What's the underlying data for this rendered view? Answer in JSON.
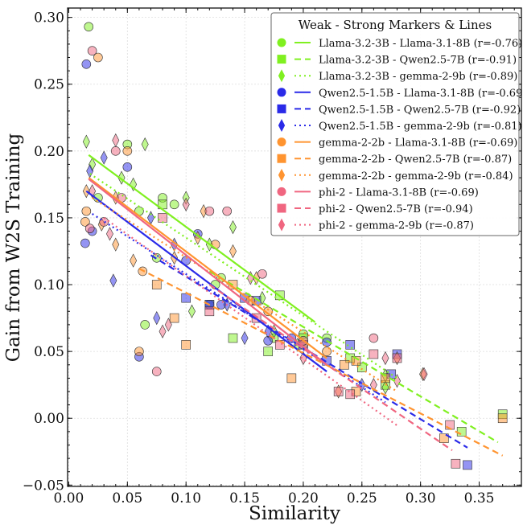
{
  "chart_data": {
    "type": "scatter",
    "title": "",
    "xlabel": "Similarity",
    "ylabel": "Gain from W2S Training",
    "xlim": [
      -0.001,
      0.386
    ],
    "ylim": [
      -0.051,
      0.307
    ],
    "xticks": [
      "0.00",
      "0.05",
      "0.10",
      "0.15",
      "0.20",
      "0.25",
      "0.30",
      "0.35"
    ],
    "yticks": [
      "−0.05",
      "0.00",
      "0.05",
      "0.10",
      "0.15",
      "0.20",
      "0.25",
      "0.30"
    ],
    "grid": true,
    "legend": {
      "title": "Weak - Strong Markers & Lines",
      "placement": "top-right"
    },
    "series": [
      {
        "name": "Llama-3.2-3B - Llama-3.1-8B (r=-0.76)",
        "color": "#80f020",
        "marker": "circle",
        "line": "solid",
        "fit": [
          [
            0.017,
            0.197
          ],
          [
            0.21,
            0.072
          ]
        ],
        "points": [
          [
            0.017,
            0.293
          ],
          [
            0.05,
            0.205
          ],
          [
            0.025,
            0.165
          ],
          [
            0.08,
            0.165
          ],
          [
            0.09,
            0.16
          ],
          [
            0.06,
            0.155
          ],
          [
            0.13,
            0.105
          ],
          [
            0.125,
            0.1
          ],
          [
            0.075,
            0.12
          ],
          [
            0.22,
            0.06
          ],
          [
            0.2,
            0.063
          ],
          [
            0.175,
            0.06
          ],
          [
            0.065,
            0.07
          ]
        ]
      },
      {
        "name": "Llama-3.2-3B - Qwen2.5-7B (r=-0.91)",
        "color": "#80f020",
        "marker": "square",
        "line": "dashed",
        "fit": [
          [
            0.12,
            0.11
          ],
          [
            0.366,
            -0.018
          ]
        ],
        "points": [
          [
            0.18,
            0.092
          ],
          [
            0.12,
            0.085
          ],
          [
            0.14,
            0.06
          ],
          [
            0.17,
            0.05
          ],
          [
            0.24,
            0.045
          ],
          [
            0.25,
            0.038
          ],
          [
            0.27,
            0.025
          ],
          [
            0.37,
            0.003
          ],
          [
            0.335,
            -0.01
          ],
          [
            0.2,
            0.06
          ],
          [
            0.08,
            0.16
          ]
        ]
      },
      {
        "name": "Llama-3.2-3B - gemma-2-9b (r=-0.89)",
        "color": "#80f020",
        "marker": "diamond",
        "line": "dotted",
        "fit": [
          [
            0.018,
            0.183
          ],
          [
            0.28,
            0.03
          ]
        ],
        "points": [
          [
            0.015,
            0.207
          ],
          [
            0.065,
            0.205
          ],
          [
            0.02,
            0.19
          ],
          [
            0.045,
            0.18
          ],
          [
            0.055,
            0.175
          ],
          [
            0.1,
            0.165
          ],
          [
            0.14,
            0.143
          ],
          [
            0.165,
            0.09
          ],
          [
            0.175,
            0.065
          ],
          [
            0.195,
            0.055
          ],
          [
            0.27,
            0.032
          ],
          [
            0.27,
            0.023
          ],
          [
            0.12,
            0.13
          ],
          [
            0.105,
            0.08
          ]
        ]
      },
      {
        "name": "Qwen2.5-1.5B - Llama-3.1-8B (r=-0.69)",
        "color": "#2a2ae8",
        "marker": "circle",
        "line": "solid",
        "fit": [
          [
            0.015,
            0.17
          ],
          [
            0.22,
            0.035
          ]
        ],
        "points": [
          [
            0.015,
            0.265
          ],
          [
            0.05,
            0.188
          ],
          [
            0.02,
            0.14
          ],
          [
            0.014,
            0.131
          ],
          [
            0.06,
            0.046
          ],
          [
            0.11,
            0.138
          ],
          [
            0.1,
            0.118
          ],
          [
            0.19,
            0.06
          ],
          [
            0.22,
            0.057
          ],
          [
            0.17,
            0.058
          ],
          [
            0.12,
            0.085
          ],
          [
            0.13,
            0.085
          ]
        ]
      },
      {
        "name": "Qwen2.5-1.5B - Qwen2.5-7B (r=-0.92)",
        "color": "#2a2ae8",
        "marker": "square",
        "line": "dashed",
        "fit": [
          [
            0.07,
            0.122
          ],
          [
            0.34,
            -0.022
          ]
        ],
        "points": [
          [
            0.1,
            0.09
          ],
          [
            0.15,
            0.09
          ],
          [
            0.12,
            0.085
          ],
          [
            0.2,
            0.055
          ],
          [
            0.24,
            0.055
          ],
          [
            0.28,
            0.048
          ],
          [
            0.34,
            -0.035
          ],
          [
            0.275,
            0.033
          ],
          [
            0.16,
            0.088
          ],
          [
            0.22,
            0.043
          ]
        ]
      },
      {
        "name": "Qwen2.5-1.5B - gemma-2-9b (r=-0.81)",
        "color": "#2a2ae8",
        "marker": "diamond",
        "line": "dotted",
        "fit": [
          [
            0.02,
            0.153
          ],
          [
            0.27,
            0.012
          ]
        ],
        "points": [
          [
            0.03,
            0.195
          ],
          [
            0.018,
            0.185
          ],
          [
            0.07,
            0.15
          ],
          [
            0.038,
            0.103
          ],
          [
            0.075,
            0.075
          ],
          [
            0.09,
            0.13
          ],
          [
            0.135,
            0.085
          ],
          [
            0.17,
            0.065
          ],
          [
            0.15,
            0.06
          ],
          [
            0.25,
            0.025
          ]
        ]
      },
      {
        "name": "gemma-2-2b - Llama-3.1-8B (r=-0.69)",
        "color": "#ff9430",
        "marker": "circle",
        "line": "solid",
        "fit": [
          [
            0.017,
            0.18
          ],
          [
            0.22,
            0.045
          ]
        ],
        "points": [
          [
            0.025,
            0.27
          ],
          [
            0.05,
            0.2
          ],
          [
            0.015,
            0.155
          ],
          [
            0.014,
            0.147
          ],
          [
            0.063,
            0.11
          ],
          [
            0.06,
            0.05
          ],
          [
            0.155,
            0.088
          ],
          [
            0.2,
            0.055
          ],
          [
            0.22,
            0.05
          ],
          [
            0.17,
            0.08
          ],
          [
            0.125,
            0.13
          ]
        ]
      },
      {
        "name": "gemma-2-2b - Qwen2.5-7B (r=-0.87)",
        "color": "#ff9430",
        "marker": "square",
        "line": "dashed",
        "fit": [
          [
            0.06,
            0.112
          ],
          [
            0.37,
            -0.028
          ]
        ],
        "points": [
          [
            0.075,
            0.1
          ],
          [
            0.1,
            0.055
          ],
          [
            0.14,
            0.1
          ],
          [
            0.19,
            0.03
          ],
          [
            0.235,
            0.04
          ],
          [
            0.245,
            0.043
          ],
          [
            0.27,
            0.03
          ],
          [
            0.32,
            -0.015
          ],
          [
            0.37,
            0.0
          ],
          [
            0.245,
            0.02
          ],
          [
            0.09,
            0.075
          ]
        ]
      },
      {
        "name": "gemma-2-2b - gemma-2-9b (r=-0.84)",
        "color": "#ff9430",
        "marker": "diamond",
        "line": "dotted",
        "fit": [
          [
            0.02,
            0.165
          ],
          [
            0.28,
            0.02
          ]
        ],
        "points": [
          [
            0.015,
            0.17
          ],
          [
            0.04,
            0.165
          ],
          [
            0.028,
            0.145
          ],
          [
            0.055,
            0.118
          ],
          [
            0.04,
            0.13
          ],
          [
            0.09,
            0.12
          ],
          [
            0.11,
            0.135
          ],
          [
            0.115,
            0.155
          ],
          [
            0.14,
            0.125
          ],
          [
            0.16,
            0.105
          ],
          [
            0.28,
            0.045
          ],
          [
            0.23,
            0.02
          ],
          [
            0.302,
            0.033
          ]
        ]
      },
      {
        "name": "phi-2 - Llama-3.1-8B (r=-0.69)",
        "color": "#f06680",
        "marker": "circle",
        "line": "solid",
        "fit": [
          [
            0.017,
            0.179
          ],
          [
            0.22,
            0.04
          ]
        ],
        "points": [
          [
            0.02,
            0.275
          ],
          [
            0.04,
            0.2
          ],
          [
            0.045,
            0.165
          ],
          [
            0.03,
            0.147
          ],
          [
            0.018,
            0.142
          ],
          [
            0.075,
            0.035
          ],
          [
            0.12,
            0.155
          ],
          [
            0.135,
            0.155
          ],
          [
            0.165,
            0.108
          ],
          [
            0.2,
            0.058
          ],
          [
            0.26,
            0.06
          ]
        ]
      },
      {
        "name": "phi-2 - Qwen2.5-7B (r=-0.94)",
        "color": "#f06680",
        "marker": "square",
        "line": "dashed",
        "fit": [
          [
            0.12,
            0.1
          ],
          [
            0.327,
            -0.024
          ]
        ],
        "points": [
          [
            0.12,
            0.08
          ],
          [
            0.18,
            0.055
          ],
          [
            0.26,
            0.048
          ],
          [
            0.28,
            0.045
          ],
          [
            0.24,
            0.018
          ],
          [
            0.23,
            0.02
          ],
          [
            0.33,
            -0.034
          ],
          [
            0.325,
            -0.005
          ],
          [
            0.16,
            0.075
          ],
          [
            0.08,
            0.15
          ]
        ]
      },
      {
        "name": "phi-2 - gemma-2-9b (r=-0.87)",
        "color": "#f06680",
        "marker": "diamond",
        "line": "dotted",
        "fit": [
          [
            0.03,
            0.15
          ],
          [
            0.281,
            -0.006
          ]
        ],
        "points": [
          [
            0.04,
            0.208
          ],
          [
            0.02,
            0.17
          ],
          [
            0.035,
            0.138
          ],
          [
            0.085,
            0.07
          ],
          [
            0.08,
            0.065
          ],
          [
            0.1,
            0.16
          ],
          [
            0.155,
            0.105
          ],
          [
            0.2,
            0.045
          ],
          [
            0.303,
            0.033
          ],
          [
            0.26,
            0.025
          ],
          [
            0.28,
            0.028
          ],
          [
            0.27,
            0.045
          ]
        ]
      }
    ]
  }
}
